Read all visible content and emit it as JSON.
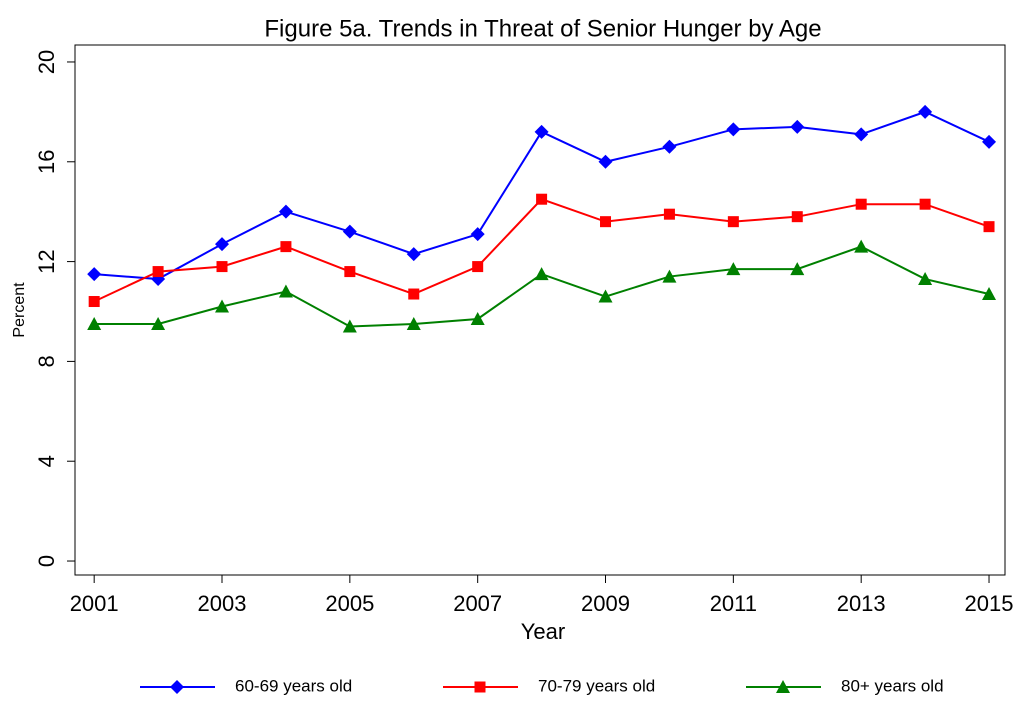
{
  "chart_data": {
    "type": "line",
    "title": "Figure 5a.  Trends in Threat of Senior Hunger by Age",
    "x_label": "Year",
    "y_label": "Percent",
    "x": [
      2001,
      2002,
      2003,
      2004,
      2005,
      2006,
      2007,
      2008,
      2009,
      2010,
      2011,
      2012,
      2013,
      2014,
      2015
    ],
    "series": [
      {
        "name": "60-69 years old",
        "color": "#0000ff",
        "marker": "diamond",
        "values": [
          11.5,
          11.3,
          12.7,
          14.0,
          13.2,
          12.3,
          13.1,
          17.2,
          16.0,
          16.6,
          17.3,
          17.4,
          17.1,
          18.0,
          16.8
        ]
      },
      {
        "name": "70-79 years old",
        "color": "#ff0000",
        "marker": "square",
        "values": [
          10.4,
          11.6,
          11.8,
          12.6,
          11.6,
          10.7,
          11.8,
          14.5,
          13.6,
          13.9,
          13.6,
          13.8,
          14.3,
          14.3,
          13.4
        ]
      },
      {
        "name": "80+ years old",
        "color": "#008000",
        "marker": "triangle",
        "values": [
          9.5,
          9.5,
          10.2,
          10.8,
          9.4,
          9.5,
          9.7,
          11.5,
          10.6,
          11.4,
          11.7,
          11.7,
          12.6,
          11.3,
          10.7
        ]
      }
    ],
    "xlim": [
      2000.7,
      2015.25
    ],
    "xticks": [
      2001,
      2003,
      2005,
      2007,
      2009,
      2011,
      2013,
      2015
    ],
    "ylim": [
      -0.56,
      20.68
    ],
    "yticks": [
      0,
      4,
      8,
      12,
      16,
      20
    ],
    "legend": "bottom"
  }
}
